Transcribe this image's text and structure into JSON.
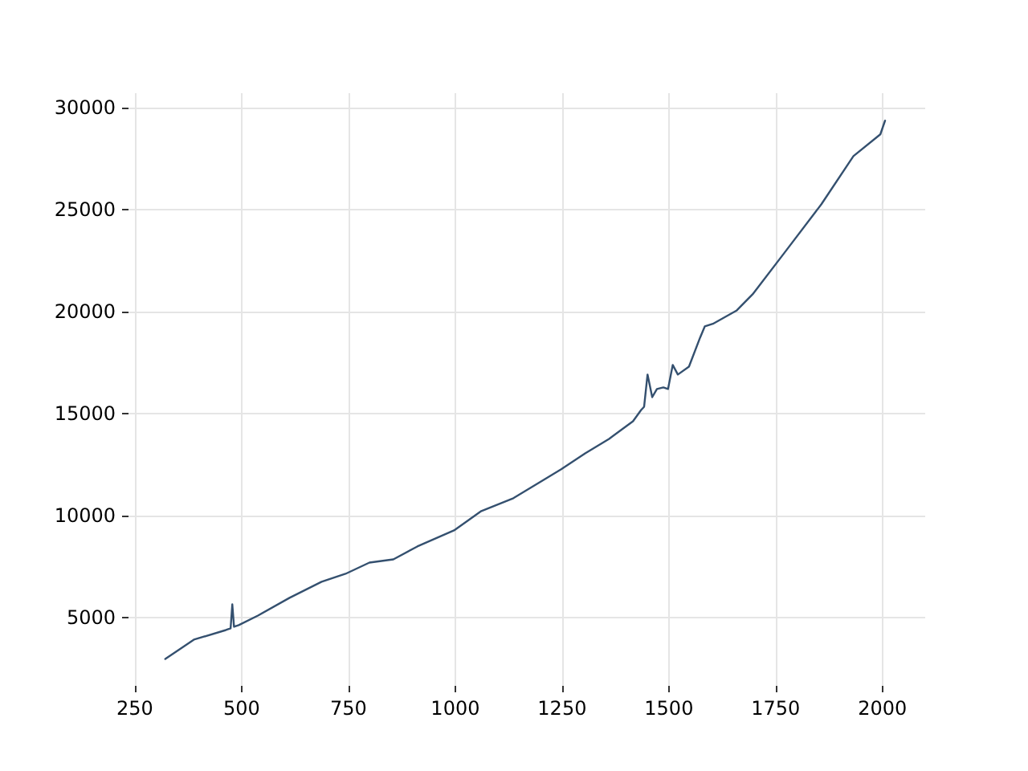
{
  "chart_data": {
    "type": "line",
    "x": [
      321,
      388,
      463,
      474,
      478,
      482,
      493,
      538,
      612,
      687,
      743,
      799,
      855,
      911,
      997,
      1061,
      1136,
      1210,
      1248,
      1304,
      1360,
      1416,
      1435,
      1442,
      1450,
      1461,
      1472,
      1487,
      1498,
      1509,
      1521,
      1547,
      1573,
      1584,
      1603,
      1659,
      1696,
      1771,
      1857,
      1932,
      1995,
      2006
    ],
    "series": [
      {
        "color": "#34506f",
        "values": [
          2950,
          3900,
          4370,
          4450,
          5630,
          4530,
          4610,
          5080,
          5950,
          6740,
          7130,
          7680,
          7840,
          8470,
          9260,
          10210,
          10840,
          11780,
          12260,
          13040,
          13750,
          14620,
          15170,
          15330,
          16910,
          15800,
          16200,
          16280,
          16200,
          17380,
          16910,
          17300,
          18720,
          19270,
          19400,
          20060,
          20850,
          22900,
          25270,
          27630,
          28700,
          29370
        ]
      }
    ],
    "xlim": [
      235,
      2100
    ],
    "xticks": [
      250,
      500,
      750,
      1000,
      1250,
      1500,
      1750,
      2000
    ],
    "ylim": [
      1630,
      30720
    ],
    "yticks": [
      5000,
      10000,
      15000,
      20000,
      25000,
      30000
    ],
    "grid": true,
    "marker": "none",
    "line_style": "solid"
  }
}
